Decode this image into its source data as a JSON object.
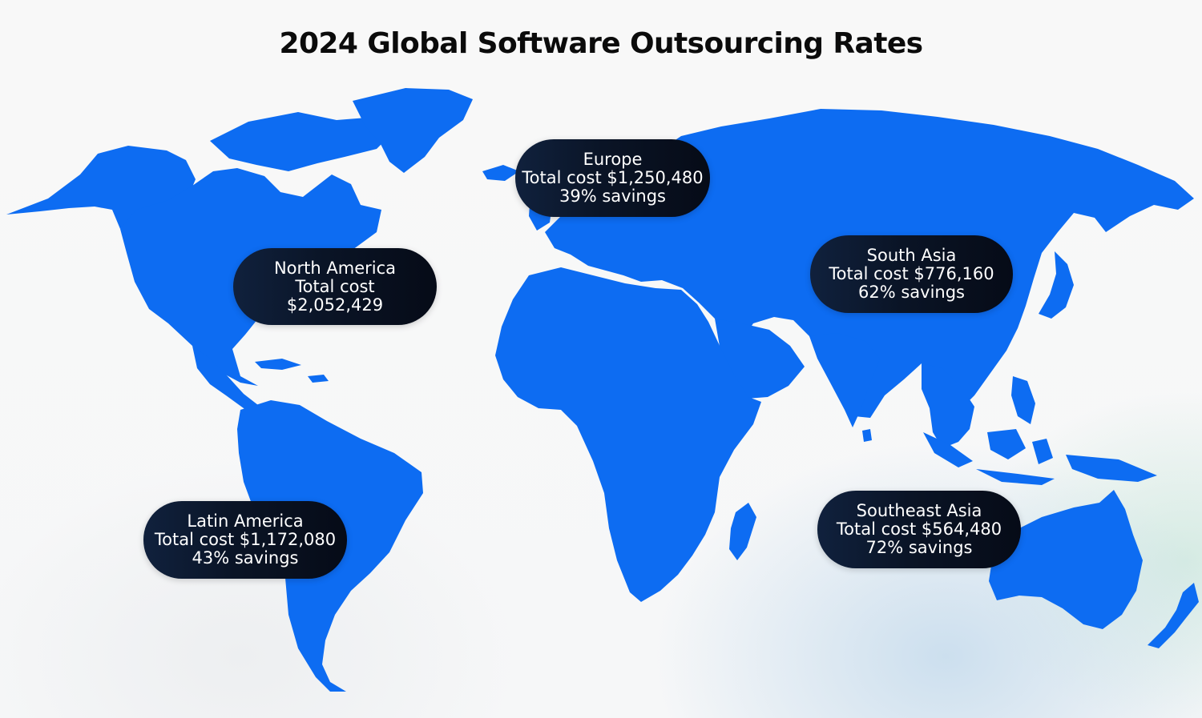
{
  "title": "2024 Global Software Outsourcing Rates",
  "colors": {
    "land": "#0d6cf2",
    "pill_background": "#0a1426",
    "pill_text": "#ffffff",
    "title_text": "#0b0b0b"
  },
  "regions": {
    "europe": {
      "name": "Europe",
      "cost": "Total cost $1,250,480",
      "savings": "39% savings"
    },
    "north_america": {
      "name": "North America",
      "cost_label": "Total cost",
      "cost_value": "$2,052,429"
    },
    "south_asia": {
      "name": "South Asia",
      "cost": "Total cost $776,160",
      "savings": "62% savings"
    },
    "latin_america": {
      "name": "Latin America",
      "cost": "Total cost $1,172,080",
      "savings": "43% savings"
    },
    "southeast_asia": {
      "name": "Southeast Asia",
      "cost": "Total cost $564,480",
      "savings": "72% savings"
    }
  }
}
